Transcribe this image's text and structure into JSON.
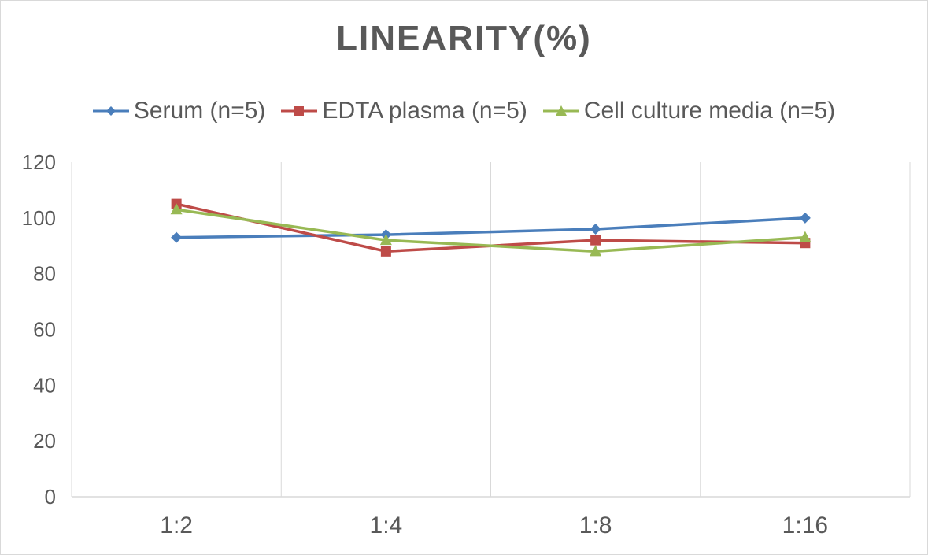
{
  "chart_data": {
    "type": "line",
    "title": "LINEARITY(%)",
    "xlabel": "",
    "ylabel": "",
    "categories": [
      "1:2",
      "1:4",
      "1:8",
      "1:16"
    ],
    "ylim": [
      0,
      120
    ],
    "yticks": [
      0,
      20,
      40,
      60,
      80,
      100,
      120
    ],
    "legend_position": "top",
    "grid": "vertical",
    "series": [
      {
        "name": "Serum (n=5)",
        "values": [
          93,
          94,
          96,
          100
        ],
        "color": "#4a7ebb",
        "marker": "diamond"
      },
      {
        "name": "EDTA plasma (n=5)",
        "values": [
          105,
          88,
          92,
          91
        ],
        "color": "#be4b48",
        "marker": "square"
      },
      {
        "name": "Cell culture media (n=5)",
        "values": [
          103,
          92,
          88,
          93
        ],
        "color": "#98b954",
        "marker": "triangle"
      }
    ]
  },
  "colors": {
    "text": "#595959",
    "grid": "#d9d9d9",
    "axis": "#d9d9d9"
  }
}
